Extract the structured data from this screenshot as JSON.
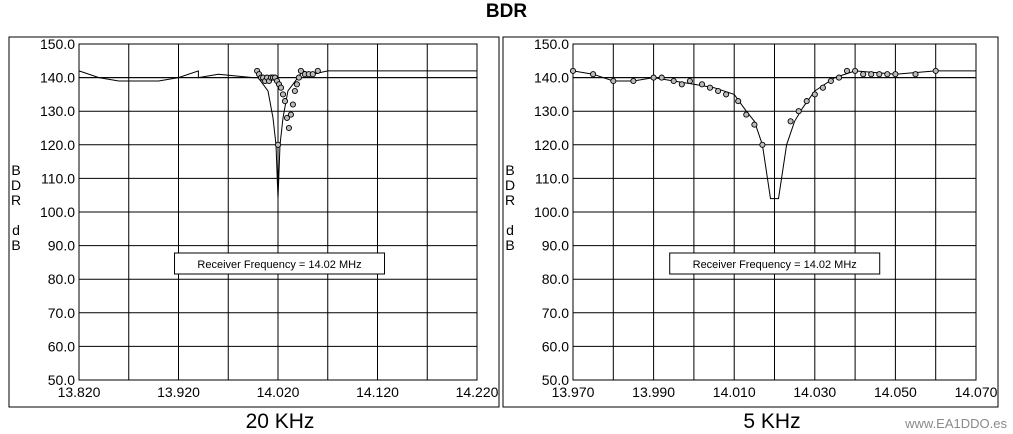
{
  "title": "BDR",
  "watermark": "www.EA1DDO.es",
  "chart_data": [
    {
      "type": "line",
      "panel_label": "20 KHz",
      "ylabel": [
        "B",
        "D",
        "R",
        "",
        "d",
        "B"
      ],
      "ylim": [
        50,
        150
      ],
      "yticks": [
        "50.0",
        "60.0",
        "70.0",
        "80.0",
        "90.0",
        "100.0",
        "110.0",
        "120.0",
        "130.0",
        "140.0",
        "150.0"
      ],
      "xlim": [
        13.82,
        14.22
      ],
      "xticks": [
        "13.820",
        "13.920",
        "14.020",
        "14.120",
        "14.220"
      ],
      "grid": true,
      "annotation": "Receiver Frequency = 14.02  MHz",
      "series": [
        {
          "values": [
            [
              13.82,
              142
            ],
            [
              13.84,
              140
            ],
            [
              13.86,
              139
            ],
            [
              13.88,
              139
            ],
            [
              13.9,
              139
            ],
            [
              13.92,
              140
            ],
            [
              13.94,
              142
            ],
            [
              13.94,
              140
            ],
            [
              13.96,
              141
            ],
            [
              13.995,
              140
            ],
            [
              14.0,
              140
            ],
            [
              14.005,
              138
            ],
            [
              14.01,
              136
            ],
            [
              14.015,
              128
            ],
            [
              14.018,
              120
            ],
            [
              14.02,
              104
            ],
            [
              14.022,
              120
            ],
            [
              14.025,
              128
            ],
            [
              14.03,
              136
            ],
            [
              14.035,
              138
            ],
            [
              14.04,
              140
            ],
            [
              14.045,
              142
            ],
            [
              14.055,
              141
            ],
            [
              14.07,
              142
            ],
            [
              14.22,
              142
            ]
          ]
        },
        {
          "values": [
            [
              13.82,
              140
            ],
            [
              13.86,
              140
            ],
            [
              13.9,
              140
            ],
            [
              13.94,
              140
            ],
            [
              13.96,
              140
            ],
            [
              14.0,
              140
            ],
            [
              14.05,
              140
            ],
            [
              14.1,
              140
            ],
            [
              14.15,
              140
            ],
            [
              14.22,
              140
            ]
          ]
        }
      ],
      "markers": [
        [
          13.999,
          142
        ],
        [
          14.001,
          141
        ],
        [
          14.003,
          140
        ],
        [
          14.005,
          140
        ],
        [
          14.007,
          139
        ],
        [
          14.009,
          140
        ],
        [
          14.011,
          139
        ],
        [
          14.013,
          140
        ],
        [
          14.015,
          140
        ],
        [
          14.017,
          140
        ],
        [
          14.019,
          139
        ],
        [
          14.021,
          138
        ],
        [
          14.023,
          137
        ],
        [
          14.025,
          135
        ],
        [
          14.027,
          133
        ],
        [
          14.029,
          128
        ],
        [
          14.031,
          125
        ],
        [
          14.02,
          120
        ],
        [
          14.033,
          129
        ],
        [
          14.035,
          132
        ],
        [
          14.037,
          136
        ],
        [
          14.039,
          138
        ],
        [
          14.041,
          140
        ],
        [
          14.043,
          142
        ],
        [
          14.047,
          141
        ],
        [
          14.051,
          141
        ],
        [
          14.055,
          141
        ],
        [
          14.06,
          142
        ]
      ]
    },
    {
      "type": "line",
      "panel_label": "5 KHz",
      "ylabel": [
        "B",
        "D",
        "R",
        "",
        "d",
        "B"
      ],
      "ylim": [
        50,
        150
      ],
      "yticks": [
        "50.0",
        "60.0",
        "70.0",
        "80.0",
        "90.0",
        "100.0",
        "110.0",
        "120.0",
        "130.0",
        "140.0",
        "150.0"
      ],
      "xlim": [
        13.97,
        14.07
      ],
      "xticks": [
        "13.970",
        "13.990",
        "14.010",
        "14.030",
        "14.050",
        "14.070"
      ],
      "grid": true,
      "annotation": "Receiver Frequency = 14.02  MHz",
      "series": [
        {
          "values": [
            [
              13.97,
              142
            ],
            [
              13.975,
              141
            ],
            [
              13.98,
              139
            ],
            [
              13.985,
              139
            ],
            [
              13.99,
              140
            ],
            [
              13.995,
              139
            ],
            [
              14.0,
              138
            ],
            [
              14.005,
              137
            ],
            [
              14.01,
              135
            ],
            [
              14.013,
              130
            ],
            [
              14.015,
              127
            ],
            [
              14.017,
              120
            ],
            [
              14.019,
              104
            ],
            [
              14.021,
              104
            ],
            [
              14.023,
              120
            ],
            [
              14.025,
              127
            ],
            [
              14.027,
              131
            ],
            [
              14.03,
              136
            ],
            [
              14.035,
              140
            ],
            [
              14.04,
              142
            ],
            [
              14.05,
              141
            ],
            [
              14.06,
              142
            ],
            [
              14.07,
              142
            ]
          ]
        },
        {
          "values": [
            [
              13.97,
              140
            ],
            [
              13.99,
              140
            ],
            [
              14.01,
              140
            ],
            [
              14.03,
              140
            ],
            [
              14.05,
              140
            ],
            [
              14.07,
              140
            ]
          ]
        }
      ],
      "markers": [
        [
          13.97,
          142
        ],
        [
          13.975,
          141
        ],
        [
          13.98,
          139
        ],
        [
          13.985,
          139
        ],
        [
          13.99,
          140
        ],
        [
          13.992,
          140
        ],
        [
          13.995,
          139
        ],
        [
          13.997,
          138
        ],
        [
          13.999,
          139
        ],
        [
          14.002,
          138
        ],
        [
          14.004,
          137
        ],
        [
          14.006,
          136
        ],
        [
          14.008,
          135
        ],
        [
          14.011,
          133
        ],
        [
          14.013,
          129
        ],
        [
          14.015,
          126
        ],
        [
          14.017,
          120
        ],
        [
          14.024,
          127
        ],
        [
          14.026,
          130
        ],
        [
          14.028,
          133
        ],
        [
          14.03,
          135
        ],
        [
          14.032,
          137
        ],
        [
          14.034,
          139
        ],
        [
          14.036,
          140
        ],
        [
          14.038,
          142
        ],
        [
          14.04,
          142
        ],
        [
          14.042,
          141
        ],
        [
          14.044,
          141
        ],
        [
          14.046,
          141
        ],
        [
          14.048,
          141
        ],
        [
          14.05,
          141
        ],
        [
          14.055,
          141
        ],
        [
          14.06,
          142
        ]
      ]
    }
  ]
}
